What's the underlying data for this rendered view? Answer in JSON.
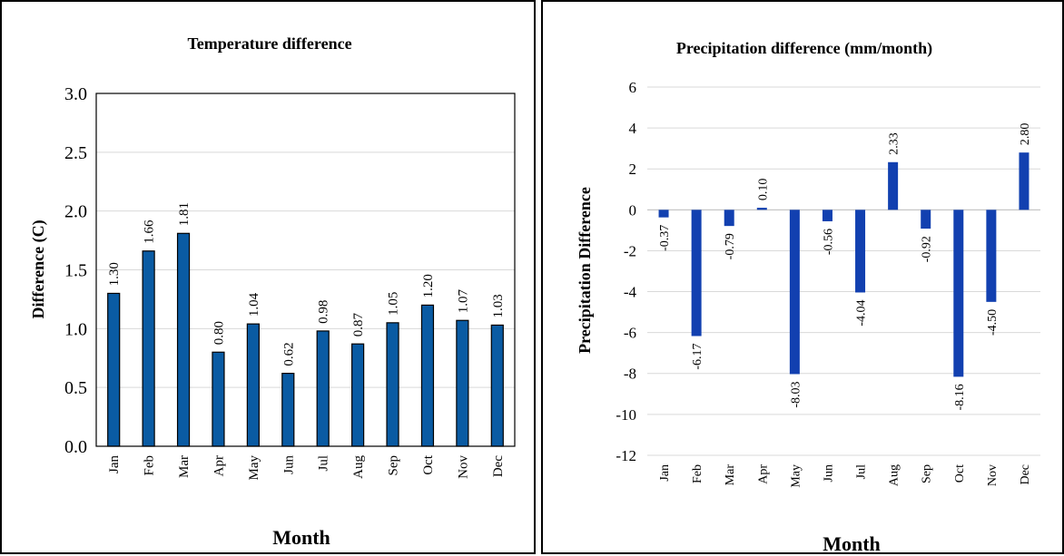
{
  "chart_data": [
    {
      "type": "bar",
      "title": "Temperature difference",
      "xlabel": "Month",
      "ylabel": "Difference (C)",
      "categories": [
        "Jan",
        "Feb",
        "Mar",
        "Apr",
        "May",
        "Jun",
        "Jul",
        "Aug",
        "Sep",
        "Oct",
        "Nov",
        "Dec"
      ],
      "values": [
        1.3,
        1.66,
        1.81,
        0.8,
        1.04,
        0.62,
        0.98,
        0.87,
        1.05,
        1.2,
        1.07,
        1.03
      ],
      "data_labels": [
        "1.30",
        "1.66",
        "1.81",
        "0.80",
        "1.04",
        "0.62",
        "0.98",
        "0.87",
        "1.05",
        "1.20",
        "1.07",
        "1.03"
      ],
      "ylim": [
        0,
        3
      ],
      "yticks": [
        "0.0",
        "0.5",
        "1.0",
        "1.5",
        "2.0",
        "2.5",
        "3.0"
      ],
      "grid": true,
      "legend": "none",
      "bar_color": "#0a5ba3",
      "bar_edge_color": "#000000"
    },
    {
      "type": "bar",
      "title": "Precipitation difference (mm/month)",
      "xlabel": "Month",
      "ylabel": "Precipitation Difference",
      "categories": [
        "Jan",
        "Feb",
        "Mar",
        "Apr",
        "May",
        "Jun",
        "Jul",
        "Aug",
        "Sep",
        "Oct",
        "Nov",
        "Dec"
      ],
      "values": [
        -0.37,
        -6.17,
        -0.79,
        0.1,
        -8.03,
        -0.56,
        -4.04,
        2.33,
        -0.92,
        -8.16,
        -4.5,
        2.8
      ],
      "data_labels": [
        "-0.37",
        "-6.17",
        "-0.79",
        "0.10",
        "-8.03",
        "-0.56",
        "-4.04",
        "2.33",
        "-0.92",
        "-8.16",
        "-4.50",
        "2.80"
      ],
      "ylim": [
        -12,
        6
      ],
      "yticks": [
        "-12",
        "-10",
        "-8",
        "-6",
        "-4",
        "-2",
        "0",
        "2",
        "4",
        "6"
      ],
      "grid": true,
      "legend": "none",
      "bar_color": "#1240b0"
    }
  ]
}
